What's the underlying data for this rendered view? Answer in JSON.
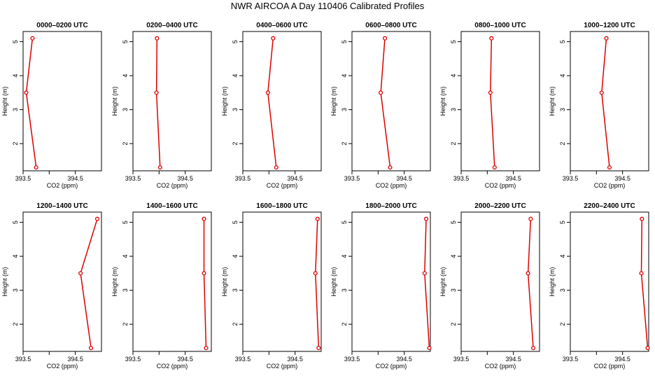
{
  "title": "NWR AIRCOA A  Day 110406  Calibrated Profiles",
  "colors": {
    "line": "#dd0000",
    "frame": "#000000"
  },
  "chart_data": [
    {
      "type": "line",
      "title": "0000–0200 UTC",
      "xlabel": "CO2 (ppm)",
      "ylabel": "Height (m)",
      "xlim": [
        393.5,
        395.0
      ],
      "ylim": [
        1.2,
        5.3
      ],
      "xticks": [
        393.5,
        394.5
      ],
      "xminorticks": [
        393.5,
        394.0,
        394.5
      ],
      "yticks": [
        2,
        3,
        4,
        5
      ],
      "series": [
        {
          "x": [
            393.68,
            393.56,
            393.75
          ],
          "y": [
            5.1,
            3.5,
            1.3
          ]
        }
      ]
    },
    {
      "type": "line",
      "title": "0200–0400 UTC",
      "xlabel": "CO2 (ppm)",
      "ylabel": "Height (m)",
      "xlim": [
        393.5,
        395.0
      ],
      "ylim": [
        1.2,
        5.3
      ],
      "xticks": [
        393.5,
        394.5
      ],
      "xminorticks": [
        393.5,
        394.0,
        394.5
      ],
      "yticks": [
        2,
        3,
        4,
        5
      ],
      "series": [
        {
          "x": [
            393.96,
            393.95,
            394.02
          ],
          "y": [
            5.1,
            3.5,
            1.3
          ]
        }
      ]
    },
    {
      "type": "line",
      "title": "0400–0600 UTC",
      "xlabel": "CO2 (ppm)",
      "ylabel": "Height (m)",
      "xlim": [
        393.5,
        395.0
      ],
      "ylim": [
        1.2,
        5.3
      ],
      "xticks": [
        393.5,
        394.5
      ],
      "xminorticks": [
        393.5,
        394.0,
        394.5
      ],
      "yticks": [
        2,
        3,
        4,
        5
      ],
      "series": [
        {
          "x": [
            394.08,
            393.98,
            394.14
          ],
          "y": [
            5.1,
            3.5,
            1.3
          ]
        }
      ]
    },
    {
      "type": "line",
      "title": "0600–0800 UTC",
      "xlabel": "CO2 (ppm)",
      "ylabel": "Height (m)",
      "xlim": [
        393.5,
        395.0
      ],
      "ylim": [
        1.2,
        5.3
      ],
      "xticks": [
        393.5,
        394.5
      ],
      "xminorticks": [
        393.5,
        394.0,
        394.5
      ],
      "yticks": [
        2,
        3,
        4,
        5
      ],
      "series": [
        {
          "x": [
            394.13,
            394.05,
            394.23
          ],
          "y": [
            5.1,
            3.5,
            1.3
          ]
        }
      ]
    },
    {
      "type": "line",
      "title": "0800–1000 UTC",
      "xlabel": "CO2 (ppm)",
      "ylabel": "Height (m)",
      "xlim": [
        393.5,
        395.0
      ],
      "ylim": [
        1.2,
        5.3
      ],
      "xticks": [
        393.5,
        394.5
      ],
      "xminorticks": [
        393.5,
        394.0,
        394.5
      ],
      "yticks": [
        2,
        3,
        4,
        5
      ],
      "series": [
        {
          "x": [
            394.08,
            394.06,
            394.14
          ],
          "y": [
            5.1,
            3.5,
            1.3
          ]
        }
      ]
    },
    {
      "type": "line",
      "title": "1000–1200 UTC",
      "xlabel": "CO2 (ppm)",
      "ylabel": "Height (m)",
      "xlim": [
        393.5,
        395.0
      ],
      "ylim": [
        1.2,
        5.3
      ],
      "xticks": [
        393.5,
        394.5
      ],
      "xminorticks": [
        393.5,
        394.0,
        394.5
      ],
      "yticks": [
        2,
        3,
        4,
        5
      ],
      "series": [
        {
          "x": [
            394.19,
            394.1,
            394.25
          ],
          "y": [
            5.1,
            3.5,
            1.3
          ]
        }
      ]
    },
    {
      "type": "line",
      "title": "1200–1400 UTC",
      "xlabel": "CO2 (ppm)",
      "ylabel": "Height (m)",
      "xlim": [
        393.5,
        395.0
      ],
      "ylim": [
        1.2,
        5.3
      ],
      "xticks": [
        393.5,
        394.5
      ],
      "xminorticks": [
        393.5,
        394.0,
        394.5
      ],
      "yticks": [
        2,
        3,
        4,
        5
      ],
      "series": [
        {
          "x": [
            394.92,
            394.6,
            394.8
          ],
          "y": [
            5.1,
            3.5,
            1.3
          ]
        }
      ]
    },
    {
      "type": "line",
      "title": "1400–1600 UTC",
      "xlabel": "CO2 (ppm)",
      "ylabel": "Height (m)",
      "xlim": [
        393.5,
        395.0
      ],
      "ylim": [
        1.2,
        5.3
      ],
      "xticks": [
        393.5,
        394.5
      ],
      "xminorticks": [
        393.5,
        394.0,
        394.5
      ],
      "yticks": [
        2,
        3,
        4,
        5
      ],
      "series": [
        {
          "x": [
            394.86,
            394.86,
            394.9
          ],
          "y": [
            5.1,
            3.5,
            1.3
          ]
        }
      ]
    },
    {
      "type": "line",
      "title": "1600–1800 UTC",
      "xlabel": "CO2 (ppm)",
      "ylabel": "Height (m)",
      "xlim": [
        393.5,
        395.0
      ],
      "ylim": [
        1.2,
        5.3
      ],
      "xticks": [
        393.5,
        394.5
      ],
      "xminorticks": [
        393.5,
        394.0,
        394.5
      ],
      "yticks": [
        2,
        3,
        4,
        5
      ],
      "series": [
        {
          "x": [
            394.93,
            394.89,
            394.95
          ],
          "y": [
            5.1,
            3.5,
            1.3
          ]
        }
      ]
    },
    {
      "type": "line",
      "title": "1800–2000 UTC",
      "xlabel": "CO2 (ppm)",
      "ylabel": "Height (m)",
      "xlim": [
        393.5,
        395.0
      ],
      "ylim": [
        1.2,
        5.3
      ],
      "xticks": [
        393.5,
        394.5
      ],
      "xminorticks": [
        393.5,
        394.0,
        394.5
      ],
      "yticks": [
        2,
        3,
        4,
        5
      ],
      "series": [
        {
          "x": [
            394.92,
            394.89,
            394.98
          ],
          "y": [
            5.1,
            3.5,
            1.3
          ]
        }
      ]
    },
    {
      "type": "line",
      "title": "2000–2200 UTC",
      "xlabel": "CO2 (ppm)",
      "ylabel": "Height (m)",
      "xlim": [
        393.5,
        395.0
      ],
      "ylim": [
        1.2,
        5.3
      ],
      "xticks": [
        393.5,
        394.5
      ],
      "xminorticks": [
        393.5,
        394.0,
        394.5
      ],
      "yticks": [
        2,
        3,
        4,
        5
      ],
      "series": [
        {
          "x": [
            394.83,
            394.78,
            394.88
          ],
          "y": [
            5.1,
            3.5,
            1.3
          ]
        }
      ]
    },
    {
      "type": "line",
      "title": "2200–2400 UTC",
      "xlabel": "CO2 (ppm)",
      "ylabel": "Height (m)",
      "xlim": [
        393.5,
        395.0
      ],
      "ylim": [
        1.2,
        5.3
      ],
      "xticks": [
        393.5,
        394.5
      ],
      "xminorticks": [
        393.5,
        394.0,
        394.5
      ],
      "yticks": [
        2,
        3,
        4,
        5
      ],
      "series": [
        {
          "x": [
            394.87,
            394.86,
            394.98
          ],
          "y": [
            5.1,
            3.5,
            1.3
          ]
        }
      ]
    }
  ]
}
